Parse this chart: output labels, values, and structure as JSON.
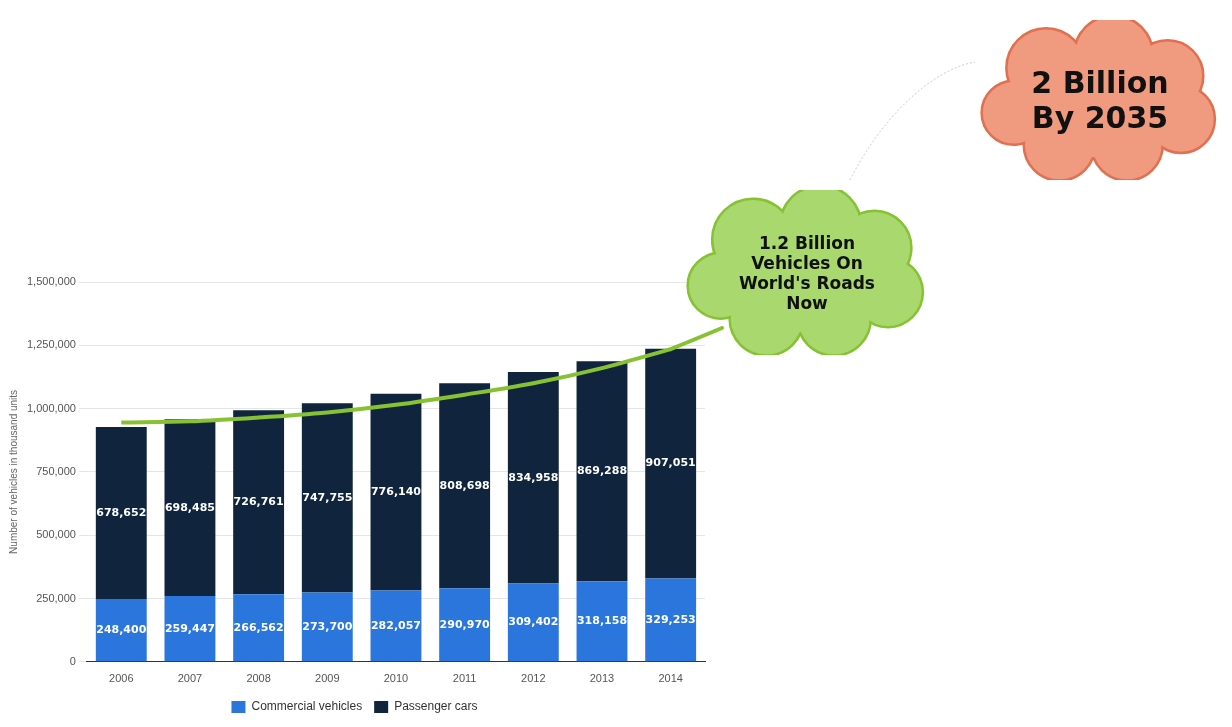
{
  "chart_data": {
    "type": "bar",
    "stacked": true,
    "ylabel": "Number of vehicles in thousand units",
    "categories": [
      "2006",
      "2007",
      "2008",
      "2009",
      "2010",
      "2011",
      "2012",
      "2013",
      "2014"
    ],
    "series": [
      {
        "name": "Commercial vehicles",
        "color": "#2a76dc",
        "values": [
          248400,
          259447,
          266562,
          273700,
          282057,
          290970,
          309402,
          318158,
          329253
        ],
        "value_labels": [
          "248,400",
          "259,447",
          "266,562",
          "273,700",
          "282,057",
          "290,970",
          "309,402",
          "318,158",
          "329,253"
        ]
      },
      {
        "name": "Passenger cars",
        "color": "#10253d",
        "values": [
          678652,
          698485,
          726761,
          747755,
          776140,
          808698,
          834958,
          869288,
          907051
        ],
        "value_labels": [
          "678,652",
          "698,485",
          "726,761",
          "747,755",
          "776,140",
          "808,698",
          "834,958",
          "869,288",
          "907,051"
        ]
      },
      {
        "type": "line",
        "color": "#86c232",
        "marker": "none",
        "values": [
          945000,
          950000,
          965000,
          985000,
          1015000,
          1055000,
          1100000,
          1160000,
          1235000
        ]
      }
    ],
    "ylim": [
      0,
      1500000
    ],
    "yticks": [
      0,
      {
        "value": 250000,
        "label": "250,000"
      },
      {
        "value": 500000,
        "label": "500,000"
      },
      {
        "value": 750000,
        "label": "750,000"
      },
      {
        "value": 1000000,
        "label": "1,000,000"
      },
      {
        "value": 1250000,
        "label": "1,250,000"
      },
      {
        "value": 1500000,
        "label": "1,500,000"
      }
    ],
    "grid": "y",
    "legend": "bottom",
    "annotations": [
      "1.2 Billion Vehicles On World's Roads Now",
      "2 Billion By 2035"
    ]
  }
}
